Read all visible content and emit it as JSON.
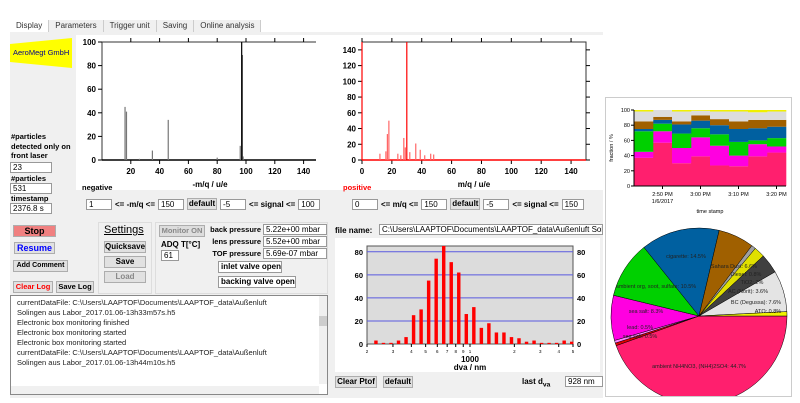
{
  "tabs": [
    "Display",
    "Parameters",
    "Trigger unit",
    "Saving",
    "Online analysis"
  ],
  "logo": "AeroMegt GmbH",
  "left": {
    "front_laser_label": "#particles detected only on front laser",
    "front_laser_value": "23",
    "particles_label": "#particles",
    "particles_value": "531",
    "timestamp_label": "timestamp",
    "timestamp_value": "2376.8 s"
  },
  "neg_chart": {
    "label": "negative",
    "xlabel": "-m/q / u/e",
    "xlim": [
      0,
      150
    ],
    "ylim": [
      0,
      100
    ],
    "xticks": [
      20,
      40,
      60,
      80,
      100,
      120,
      140
    ],
    "yticks": [
      0,
      20,
      40,
      60,
      80,
      100
    ],
    "peaks": [
      [
        16,
        45
      ],
      [
        17,
        41
      ],
      [
        35,
        8
      ],
      [
        46,
        34
      ],
      [
        96,
        12
      ],
      [
        97,
        100
      ],
      [
        97.3,
        89
      ],
      [
        80,
        2
      ],
      [
        26,
        1
      ],
      [
        98,
        3
      ]
    ]
  },
  "pos_chart": {
    "label": "positive",
    "xlabel": "m/q / u/e",
    "xlim": [
      0,
      150
    ],
    "ylim": [
      0,
      150
    ],
    "xticks": [
      0,
      20,
      40,
      60,
      80,
      100,
      120,
      140
    ],
    "yticks": [
      0,
      20,
      40,
      60,
      80,
      100,
      120,
      140
    ],
    "peaks": [
      [
        0,
        150
      ],
      [
        12,
        8
      ],
      [
        16,
        11
      ],
      [
        17,
        33
      ],
      [
        18,
        50
      ],
      [
        24,
        8
      ],
      [
        26,
        6
      ],
      [
        28,
        28
      ],
      [
        29,
        16
      ],
      [
        30,
        150
      ],
      [
        32,
        10
      ],
      [
        36,
        21
      ],
      [
        39,
        13
      ],
      [
        42,
        6
      ],
      [
        46,
        8
      ],
      [
        48,
        7
      ]
    ]
  },
  "neg_controls": {
    "min": "1",
    "mq_label": "<= -m/q <=",
    "max": "150",
    "default": "default",
    "sig_min": "-5",
    "sig_label": "<= signal <=",
    "sig_max": "100"
  },
  "pos_controls": {
    "min": "0",
    "mq_label": "<= m/q <=",
    "max": "150",
    "default": "default",
    "sig_min": "-5",
    "sig_label": "<= signal <=",
    "sig_max": "150"
  },
  "buttons": {
    "stop": "Stop",
    "resume": "Resume",
    "add_comment": "Add Comment",
    "clear_log": "Clear Log",
    "save_log": "Save Log"
  },
  "settings": {
    "title": "Settings",
    "quicksave": "Quicksave",
    "save": "Save",
    "load": "Load"
  },
  "monitor": {
    "button": "Monitor ON",
    "adq_label": "ADQ T[°C]",
    "adq_value": "61",
    "back_label": "back pressure",
    "back_value": "5.22e+00 mbar",
    "lens_label": "lens pressure",
    "lens_value": "5.52e+00 mbar",
    "tof_label": "TOF pressure",
    "tof_value": "5.69e-07 mbar",
    "inlet": "inlet valve open",
    "backing": "backing valve open"
  },
  "log": [
    "currentDataFile: C:\\Users\\LAAPTOF\\Documents\\LAAPTOF_data\\Außenluft",
    "Solingen aus Labor_2017.01.06-13h33m57s.h5",
    "Electronic box monitoring finished",
    "Electronic box monitoring started",
    "Electronic box monitoring started",
    "currentDataFile: C:\\Users\\LAAPTOF\\Documents\\LAAPTOF_data\\Außenluft",
    "Solingen aus Labor_2017.01.06-13h44m10s.h5"
  ],
  "file": {
    "label": "file name:",
    "value": "C:\\Users\\LAAPTOF\\Documents\\LAAPTOF_data\\Außenluft Solin"
  },
  "histogram": {
    "xlabel": "dva / nm",
    "xlabel_main": "d",
    "xlabel_sub": "va",
    "xlabel_unit": " / nm",
    "ylim": [
      0,
      85
    ],
    "yticks": [
      0,
      20,
      40,
      60,
      80
    ],
    "xlim": [
      200,
      5000
    ],
    "minor_ticks": [
      {
        "v": 200,
        "l": "2"
      },
      {
        "v": 300,
        "l": "3"
      },
      {
        "v": 400,
        "l": "4"
      },
      {
        "v": 500,
        "l": "5"
      },
      {
        "v": 600,
        "l": "6"
      },
      {
        "v": 700,
        "l": "7"
      },
      {
        "v": 800,
        "l": "8"
      },
      {
        "v": 900,
        "l": "9"
      },
      {
        "v": 1000,
        "l": "1"
      },
      {
        "v": 2000,
        "l": "2"
      },
      {
        "v": 3000,
        "l": "3"
      },
      {
        "v": 4000,
        "l": "4"
      },
      {
        "v": 5000,
        "l": "5"
      }
    ],
    "decade_label": "1000",
    "values": [
      3,
      1,
      1,
      3,
      6,
      25,
      30,
      55,
      74,
      85,
      71,
      62,
      26,
      32,
      14,
      18,
      10,
      10,
      6,
      5,
      2,
      3,
      1,
      1,
      1,
      3,
      2
    ],
    "clear": "Clear Ptof",
    "default": "default",
    "last_label": "last d",
    "last_sub": "va",
    "last_value": "928 nm"
  },
  "chart_data": [
    {
      "type": "area",
      "title": "",
      "xlabel": "time stamp",
      "ylabel": "fraction / %",
      "ylim": [
        0,
        100
      ],
      "yticks": [
        0,
        20,
        40,
        60,
        80,
        100
      ],
      "xticks": [
        "2:50 PM",
        "3:00 PM",
        "3:10 PM",
        "3:20 PM"
      ],
      "xtick_date": "1/6/2017",
      "colors": [
        "#ff1f6e",
        "#ff00e0",
        "#00d000",
        "#0060a0",
        "#a06000",
        "#dcdcdc",
        "#f0f000"
      ],
      "series": [
        [
          37,
          57,
          30,
          39,
          27,
          26,
          39,
          44
        ],
        [
          8,
          15,
          20,
          25,
          26,
          14,
          16,
          8
        ],
        [
          27,
          10,
          19,
          12,
          15,
          18,
          5,
          11
        ],
        [
          3,
          5,
          12,
          10,
          12,
          17,
          16,
          15
        ],
        [
          10,
          4,
          4,
          7,
          8,
          10,
          11,
          9
        ],
        [
          13,
          9,
          13,
          6,
          10,
          13,
          10,
          11
        ],
        [
          2,
          0,
          2,
          1,
          2,
          2,
          3,
          2
        ]
      ]
    },
    {
      "type": "pie",
      "slices": [
        {
          "label": "ambient NH4NO3, (NH4)2SO4: 44.7%",
          "value": 44.7,
          "color": "#ff1f6e"
        },
        {
          "label": "lead: 0.5%",
          "value": 0.5,
          "color": "#e00000"
        },
        {
          "label": "sea salt: 0.5%",
          "value": 0.5,
          "color": "#ff80ff"
        },
        {
          "label": "sea salt: 8.3%",
          "value": 8.3,
          "color": "#ff00e0"
        },
        {
          "label": "ambient org, soot, sulfate: 10.5%",
          "value": 10.5,
          "color": "#00d000"
        },
        {
          "label": "cigarette: 14.5%",
          "value": 14.5,
          "color": "#0060a0"
        },
        {
          "label": "Sahara Dust: 6.6%",
          "value": 6.6,
          "color": "#a06000"
        },
        {
          "label": "Diesel: 0.8%",
          "value": 0.8,
          "color": "#a0a0a0"
        },
        {
          "label": "TiO2: 2%",
          "value": 2,
          "color": "#e0e000"
        },
        {
          "label": "AC (Norit): 3.6%",
          "value": 3.6,
          "color": "#404040"
        },
        {
          "label": "BC (Degussa): 7.6%",
          "value": 7.6,
          "color": "#e4e4e4"
        },
        {
          "label": "ATO: 0.8%",
          "value": 0.8,
          "color": "#f0f000"
        }
      ]
    }
  ]
}
